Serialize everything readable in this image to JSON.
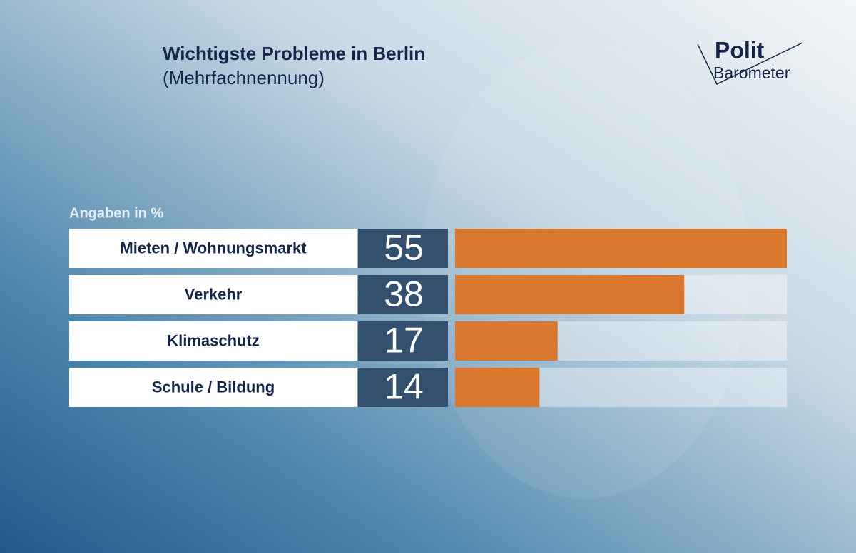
{
  "chart_data": {
    "type": "hbar",
    "title": "Wichtigste Probleme in Berlin",
    "subtitle": "(Mehrfachnennung)",
    "unit_note": "Angaben in %",
    "logo": [
      "Polit",
      "Barometer"
    ],
    "categories": [
      "Mieten / Wohnungsmarkt",
      "Verkehr",
      "Klimaschutz",
      "Schule / Bildung"
    ],
    "values": [
      55,
      38,
      17,
      14
    ],
    "color": "#d9782f",
    "xlim": [
      0,
      55
    ]
  }
}
